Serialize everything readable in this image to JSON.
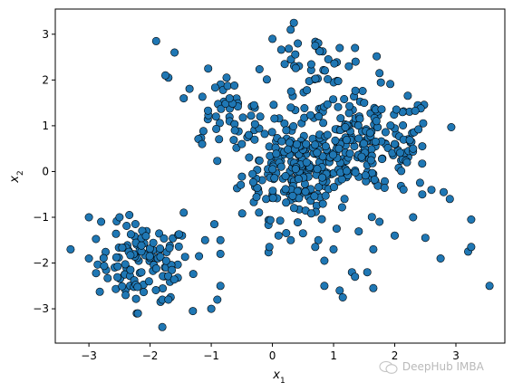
{
  "chart_data": {
    "type": "scatter",
    "title": "",
    "xlabel": "x1",
    "ylabel": "x2",
    "xlim": [
      -3.55,
      3.8
    ],
    "ylim": [
      -3.75,
      3.55
    ],
    "xticks": [
      -3,
      -2,
      -1,
      0,
      1,
      2,
      3
    ],
    "yticks": [
      -3,
      -2,
      -1,
      0,
      1,
      2,
      3
    ],
    "point_color": "#1f77b4",
    "edge_color": "#000000",
    "grid": false,
    "clusters": [
      {
        "center": [
          -2.1,
          -2.0
        ],
        "spread": [
          0.38,
          0.42
        ],
        "count": 110
      },
      {
        "center": [
          0.4,
          0.1
        ],
        "spread": [
          0.45,
          0.55
        ],
        "count": 230
      },
      {
        "center": [
          1.6,
          0.6
        ],
        "spread": [
          0.55,
          0.55
        ],
        "count": 170
      },
      {
        "center": [
          0.6,
          2.2
        ],
        "spread": [
          0.35,
          0.4
        ],
        "count": 40
      },
      {
        "center": [
          -0.8,
          1.3
        ],
        "spread": [
          0.35,
          0.35
        ],
        "count": 40
      }
    ],
    "points": [
      [
        -3.3,
        -1.7
      ],
      [
        -3.0,
        -1.0
      ],
      [
        -2.8,
        -1.1
      ],
      [
        -2.5,
        -1.0
      ],
      [
        -3.0,
        -1.9
      ],
      [
        -2.4,
        -2.7
      ],
      [
        -2.2,
        -3.1
      ],
      [
        -1.8,
        -3.4
      ],
      [
        -1.3,
        -3.05
      ],
      [
        -1.0,
        -3.0
      ],
      [
        -0.85,
        -2.5
      ],
      [
        -0.85,
        -1.8
      ],
      [
        -0.85,
        -1.5
      ],
      [
        -1.45,
        -0.9
      ],
      [
        -1.8,
        -2.8
      ],
      [
        -1.7,
        -2.8
      ],
      [
        -1.1,
        -1.5
      ],
      [
        -1.2,
        -1.85
      ],
      [
        -0.95,
        -1.15
      ],
      [
        -0.9,
        -2.8
      ],
      [
        -1.9,
        2.85
      ],
      [
        -1.6,
        2.6
      ],
      [
        -1.7,
        2.05
      ],
      [
        -1.75,
        2.1
      ],
      [
        -1.05,
        2.25
      ],
      [
        -0.75,
        2.05
      ],
      [
        -0.7,
        1.6
      ],
      [
        -1.45,
        1.6
      ],
      [
        -1.15,
        0.6
      ],
      [
        -0.5,
        0.6
      ],
      [
        0.0,
        2.9
      ],
      [
        0.35,
        3.25
      ],
      [
        0.2,
        2.35
      ],
      [
        0.7,
        2.75
      ],
      [
        1.1,
        2.7
      ],
      [
        1.35,
        2.7
      ],
      [
        1.25,
        2.3
      ],
      [
        1.75,
        2.15
      ],
      [
        2.45,
        -0.5
      ],
      [
        2.6,
        -0.4
      ],
      [
        2.8,
        -0.45
      ],
      [
        2.9,
        -0.6
      ],
      [
        3.25,
        -1.05
      ],
      [
        3.2,
        -1.75
      ],
      [
        3.25,
        -1.65
      ],
      [
        3.55,
        -2.5
      ],
      [
        2.75,
        -1.9
      ],
      [
        2.5,
        -1.45
      ],
      [
        2.3,
        -1.0
      ],
      [
        2.0,
        -1.4
      ],
      [
        1.75,
        -1.1
      ],
      [
        1.55,
        -2.2
      ],
      [
        1.65,
        -2.55
      ],
      [
        1.3,
        -2.2
      ],
      [
        1.65,
        -1.7
      ],
      [
        1.35,
        -2.3
      ],
      [
        1.1,
        -2.6
      ],
      [
        1.15,
        -2.75
      ],
      [
        0.85,
        -2.5
      ],
      [
        0.85,
        -1.95
      ],
      [
        0.75,
        -1.5
      ],
      [
        0.7,
        -1.65
      ],
      [
        0.5,
        -1.35
      ],
      [
        1.0,
        -1.7
      ],
      [
        1.05,
        -1.25
      ],
      [
        0.3,
        -1.5
      ],
      [
        -0.05,
        -1.65
      ],
      [
        0.1,
        -1.4
      ],
      [
        2.45,
        0.55
      ],
      [
        2.3,
        0.5
      ],
      [
        2.0,
        0.6
      ],
      [
        2.2,
        0.2
      ],
      [
        1.7,
        1.1
      ],
      [
        1.5,
        1.5
      ],
      [
        -0.3,
        1.45
      ],
      [
        -0.2,
        1.2
      ],
      [
        0.3,
        1.4
      ],
      [
        0.55,
        0.6
      ],
      [
        0.9,
        0.8
      ]
    ]
  },
  "watermark": {
    "text": "DeepHub IMBA",
    "icon": "wechat-logo-icon"
  }
}
